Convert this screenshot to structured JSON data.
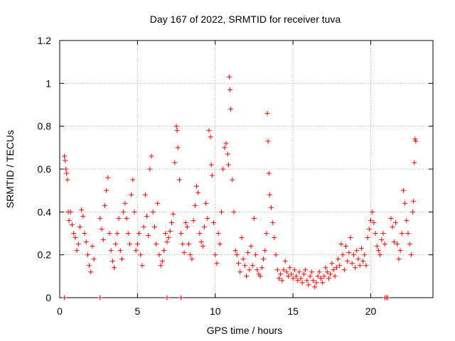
{
  "chart_data": {
    "type": "scatter",
    "title": "Day 167 of 2022, SRMTID for receiver tuva",
    "xlabel": "GPS time / hours",
    "ylabel": "SRMTID / TECUs",
    "xlim": [
      0,
      24
    ],
    "ylim": [
      0,
      1.2
    ],
    "xticks": [
      0,
      5,
      10,
      15,
      20
    ],
    "xtick_labels": [
      "0",
      "5",
      "10",
      "15",
      "20"
    ],
    "yticks": [
      0,
      0.2,
      0.4,
      0.6,
      0.8,
      1.0,
      1.2
    ],
    "ytick_labels": [
      "0",
      "0.2",
      "0.4",
      "0.6",
      "0.8",
      "1",
      "1.2"
    ],
    "grid": true,
    "marker": "+",
    "color": "#ff0000",
    "series": [
      {
        "name": "tuva",
        "x": [
          0.3,
          0.35,
          0.4,
          0.45,
          0.5,
          0.55,
          0.6,
          0.7,
          0.8,
          0.9,
          1.0,
          1.1,
          1.2,
          1.3,
          1.4,
          1.5,
          1.6,
          1.7,
          1.8,
          1.9,
          2.0,
          2.1,
          2.2,
          2.6,
          2.7,
          2.8,
          2.9,
          3.0,
          3.1,
          3.2,
          3.3,
          3.4,
          3.5,
          3.6,
          3.7,
          3.8,
          3.9,
          4.0,
          4.1,
          4.2,
          4.3,
          4.4,
          4.5,
          4.6,
          4.7,
          4.8,
          4.9,
          5.0,
          5.1,
          5.2,
          5.3,
          5.4,
          5.5,
          5.6,
          5.7,
          5.8,
          5.9,
          6.0,
          6.1,
          6.2,
          6.3,
          6.4,
          6.5,
          6.6,
          6.7,
          6.8,
          6.9,
          7.0,
          7.1,
          7.2,
          7.3,
          7.4,
          7.5,
          7.55,
          7.6,
          7.7,
          7.8,
          7.9,
          8.0,
          8.1,
          8.2,
          8.3,
          8.4,
          8.5,
          8.6,
          8.7,
          8.8,
          8.9,
          9.0,
          9.1,
          9.2,
          9.3,
          9.4,
          9.5,
          9.6,
          9.7,
          9.75,
          9.8,
          9.9,
          10.0,
          10.1,
          10.2,
          10.3,
          10.4,
          10.5,
          10.6,
          10.7,
          10.8,
          10.85,
          10.9,
          10.95,
          11.0,
          11.1,
          11.2,
          11.3,
          11.4,
          11.5,
          11.6,
          11.7,
          11.8,
          11.9,
          12.0,
          12.1,
          12.2,
          12.3,
          12.4,
          12.5,
          12.6,
          12.7,
          12.8,
          12.9,
          13.0,
          13.1,
          13.2,
          13.3,
          13.35,
          13.4,
          13.45,
          13.5,
          13.6,
          13.7,
          13.8,
          13.9,
          14.0,
          14.1,
          14.2,
          14.3,
          14.4,
          14.5,
          14.6,
          14.7,
          14.8,
          14.9,
          15.0,
          15.1,
          15.2,
          15.3,
          15.4,
          15.5,
          15.6,
          15.7,
          15.8,
          15.9,
          16.0,
          16.1,
          16.2,
          16.3,
          16.4,
          16.5,
          16.6,
          16.7,
          16.8,
          16.9,
          17.0,
          17.1,
          17.2,
          17.3,
          17.4,
          17.5,
          17.6,
          17.7,
          17.8,
          17.9,
          18.0,
          18.1,
          18.2,
          18.3,
          18.4,
          18.5,
          18.6,
          18.7,
          18.8,
          18.9,
          19.0,
          19.1,
          19.2,
          19.3,
          19.4,
          19.5,
          19.6,
          19.7,
          19.8,
          19.9,
          20.0,
          20.1,
          20.2,
          20.3,
          20.4,
          20.5,
          20.6,
          20.7,
          20.8,
          20.9,
          21.3,
          21.4,
          21.5,
          21.6,
          21.7,
          21.8,
          21.9,
          22.0,
          22.1,
          22.2,
          22.3,
          22.4,
          22.5,
          22.6,
          22.7,
          22.75,
          22.8,
          22.85,
          22.9
        ],
        "y": [
          0.66,
          0.64,
          0.6,
          0.58,
          0.55,
          0.4,
          0.36,
          0.4,
          0.34,
          0.3,
          0.28,
          0.22,
          0.25,
          0.33,
          0.41,
          0.38,
          0.3,
          0.26,
          0.2,
          0.15,
          0.12,
          0.24,
          0.18,
          0.37,
          0.32,
          0.27,
          0.43,
          0.5,
          0.56,
          0.3,
          0.22,
          0.17,
          0.14,
          0.25,
          0.3,
          0.37,
          0.22,
          0.18,
          0.4,
          0.44,
          0.37,
          0.3,
          0.25,
          0.48,
          0.55,
          0.4,
          0.22,
          0.25,
          0.3,
          0.2,
          0.15,
          0.33,
          0.48,
          0.38,
          0.29,
          0.6,
          0.66,
          0.4,
          0.33,
          0.25,
          0.44,
          0.2,
          0.15,
          0.17,
          0.22,
          0.3,
          0.26,
          0.28,
          0.31,
          0.35,
          0.39,
          0.63,
          0.8,
          0.78,
          0.7,
          0.55,
          0.3,
          0.25,
          0.21,
          0.35,
          0.33,
          0.25,
          0.2,
          0.18,
          0.36,
          0.43,
          0.52,
          0.49,
          0.3,
          0.26,
          0.24,
          0.33,
          0.44,
          0.37,
          0.78,
          0.75,
          0.62,
          0.57,
          0.35,
          0.2,
          0.16,
          0.3,
          0.25,
          0.4,
          0.6,
          0.7,
          0.72,
          0.67,
          0.62,
          1.03,
          0.97,
          0.88,
          0.55,
          0.4,
          0.22,
          0.2,
          0.16,
          0.12,
          0.28,
          0.18,
          0.15,
          0.1,
          0.21,
          0.13,
          0.24,
          0.15,
          0.37,
          0.2,
          0.13,
          0.11,
          0.1,
          0.14,
          0.18,
          0.22,
          0.3,
          0.86,
          0.73,
          0.58,
          0.48,
          0.42,
          0.35,
          0.28,
          0.2,
          0.13,
          0.09,
          0.11,
          0.08,
          0.13,
          0.17,
          0.12,
          0.1,
          0.14,
          0.11,
          0.09,
          0.13,
          0.1,
          0.08,
          0.12,
          0.09,
          0.07,
          0.11,
          0.13,
          0.08,
          0.06,
          0.1,
          0.12,
          0.08,
          0.05,
          0.07,
          0.1,
          0.12,
          0.09,
          0.07,
          0.1,
          0.14,
          0.12,
          0.09,
          0.11,
          0.16,
          0.13,
          0.1,
          0.14,
          0.18,
          0.15,
          0.25,
          0.2,
          0.13,
          0.24,
          0.17,
          0.21,
          0.28,
          0.16,
          0.2,
          0.14,
          0.22,
          0.18,
          0.15,
          0.23,
          0.17,
          0.2,
          0.15,
          0.28,
          0.32,
          0.36,
          0.4,
          0.35,
          0.3,
          0.24,
          0.22,
          0.2,
          0.27,
          0.3,
          0.25,
          0.37,
          0.33,
          0.26,
          0.35,
          0.25,
          0.18,
          0.22,
          0.3,
          0.5,
          0.44,
          0.36,
          0.3,
          0.25,
          0.2,
          0.4,
          0.45,
          0.63,
          0.74,
          0.73
        ]
      }
    ],
    "zero_markers_x": [
      0.3,
      2.6,
      6.9,
      7.8,
      20.9,
      21.0,
      21.1
    ]
  }
}
